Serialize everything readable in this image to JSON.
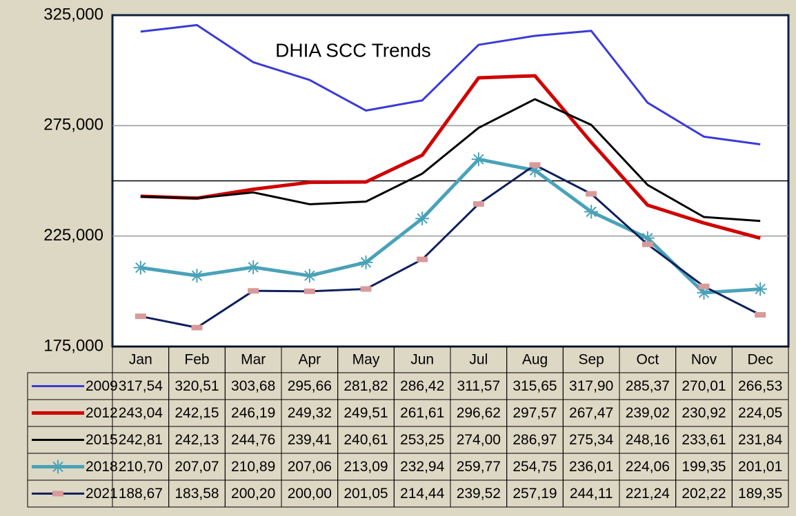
{
  "chart_data": {
    "type": "line",
    "title": "DHIA SCC Trends",
    "categories": [
      "Jan",
      "Feb",
      "Mar",
      "Apr",
      "May",
      "Jun",
      "Jul",
      "Aug",
      "Sep",
      "Oct",
      "Nov",
      "Dec"
    ],
    "ylim": [
      175000,
      325000
    ],
    "yticks": [
      {
        "value": 175000,
        "label": "175,000"
      },
      {
        "value": 225000,
        "label": "225,000"
      },
      {
        "value": 275000,
        "label": "275,000"
      },
      {
        "value": 325000,
        "label": "325,000"
      }
    ],
    "hline": 250000,
    "grid": true,
    "series": [
      {
        "name": "2009",
        "color": "#3a3ad8",
        "width": 3,
        "marker": "none",
        "values": [
          317540,
          320510,
          303680,
          295660,
          281820,
          286420,
          311570,
          315650,
          317900,
          285370,
          270010,
          266530
        ],
        "value_labels": [
          "317,54",
          "320,51",
          "303,68",
          "295,66",
          "281,82",
          "286,42",
          "311,57",
          "315,65",
          "317,90",
          "285,37",
          "270,01",
          "266,53"
        ]
      },
      {
        "name": "2012",
        "color": "#d00000",
        "width": 5,
        "marker": "none",
        "values": [
          243040,
          242150,
          246190,
          249320,
          249510,
          261610,
          296620,
          297570,
          267470,
          239020,
          230920,
          224050
        ],
        "value_labels": [
          "243,04",
          "242,15",
          "246,19",
          "249,32",
          "249,51",
          "261,61",
          "296,62",
          "297,57",
          "267,47",
          "239,02",
          "230,92",
          "224,05"
        ]
      },
      {
        "name": "2015",
        "color": "#000000",
        "width": 3,
        "marker": "none",
        "values": [
          242810,
          242130,
          244760,
          239410,
          240610,
          253250,
          274000,
          286970,
          275340,
          248160,
          233610,
          231840
        ],
        "value_labels": [
          "242,81",
          "242,13",
          "244,76",
          "239,41",
          "240,61",
          "253,25",
          "274,00",
          "286,97",
          "275,34",
          "248,16",
          "233,61",
          "231,84"
        ]
      },
      {
        "name": "2018",
        "color": "#4aa2b8",
        "width": 5,
        "marker": "star",
        "values": [
          210700,
          207070,
          210890,
          207060,
          213090,
          232940,
          259770,
          254750,
          236010,
          224060,
          199350,
          201010
        ],
        "value_labels": [
          "210,70",
          "207,07",
          "210,89",
          "207,06",
          "213,09",
          "232,94",
          "259,77",
          "254,75",
          "236,01",
          "224,06",
          "199,35",
          "201,01"
        ]
      },
      {
        "name": "2021",
        "color": "#0d1f5c",
        "width": 3,
        "marker": "dash",
        "marker_color": "#d89a9a",
        "values": [
          188670,
          183580,
          200200,
          200000,
          201050,
          214440,
          239520,
          257190,
          244110,
          221240,
          202220,
          189350
        ],
        "value_labels": [
          "188,67",
          "183,58",
          "200,20",
          "200,00",
          "201,05",
          "214,44",
          "239,52",
          "257,19",
          "244,11",
          "221,24",
          "202,22",
          "189,35"
        ]
      }
    ]
  }
}
